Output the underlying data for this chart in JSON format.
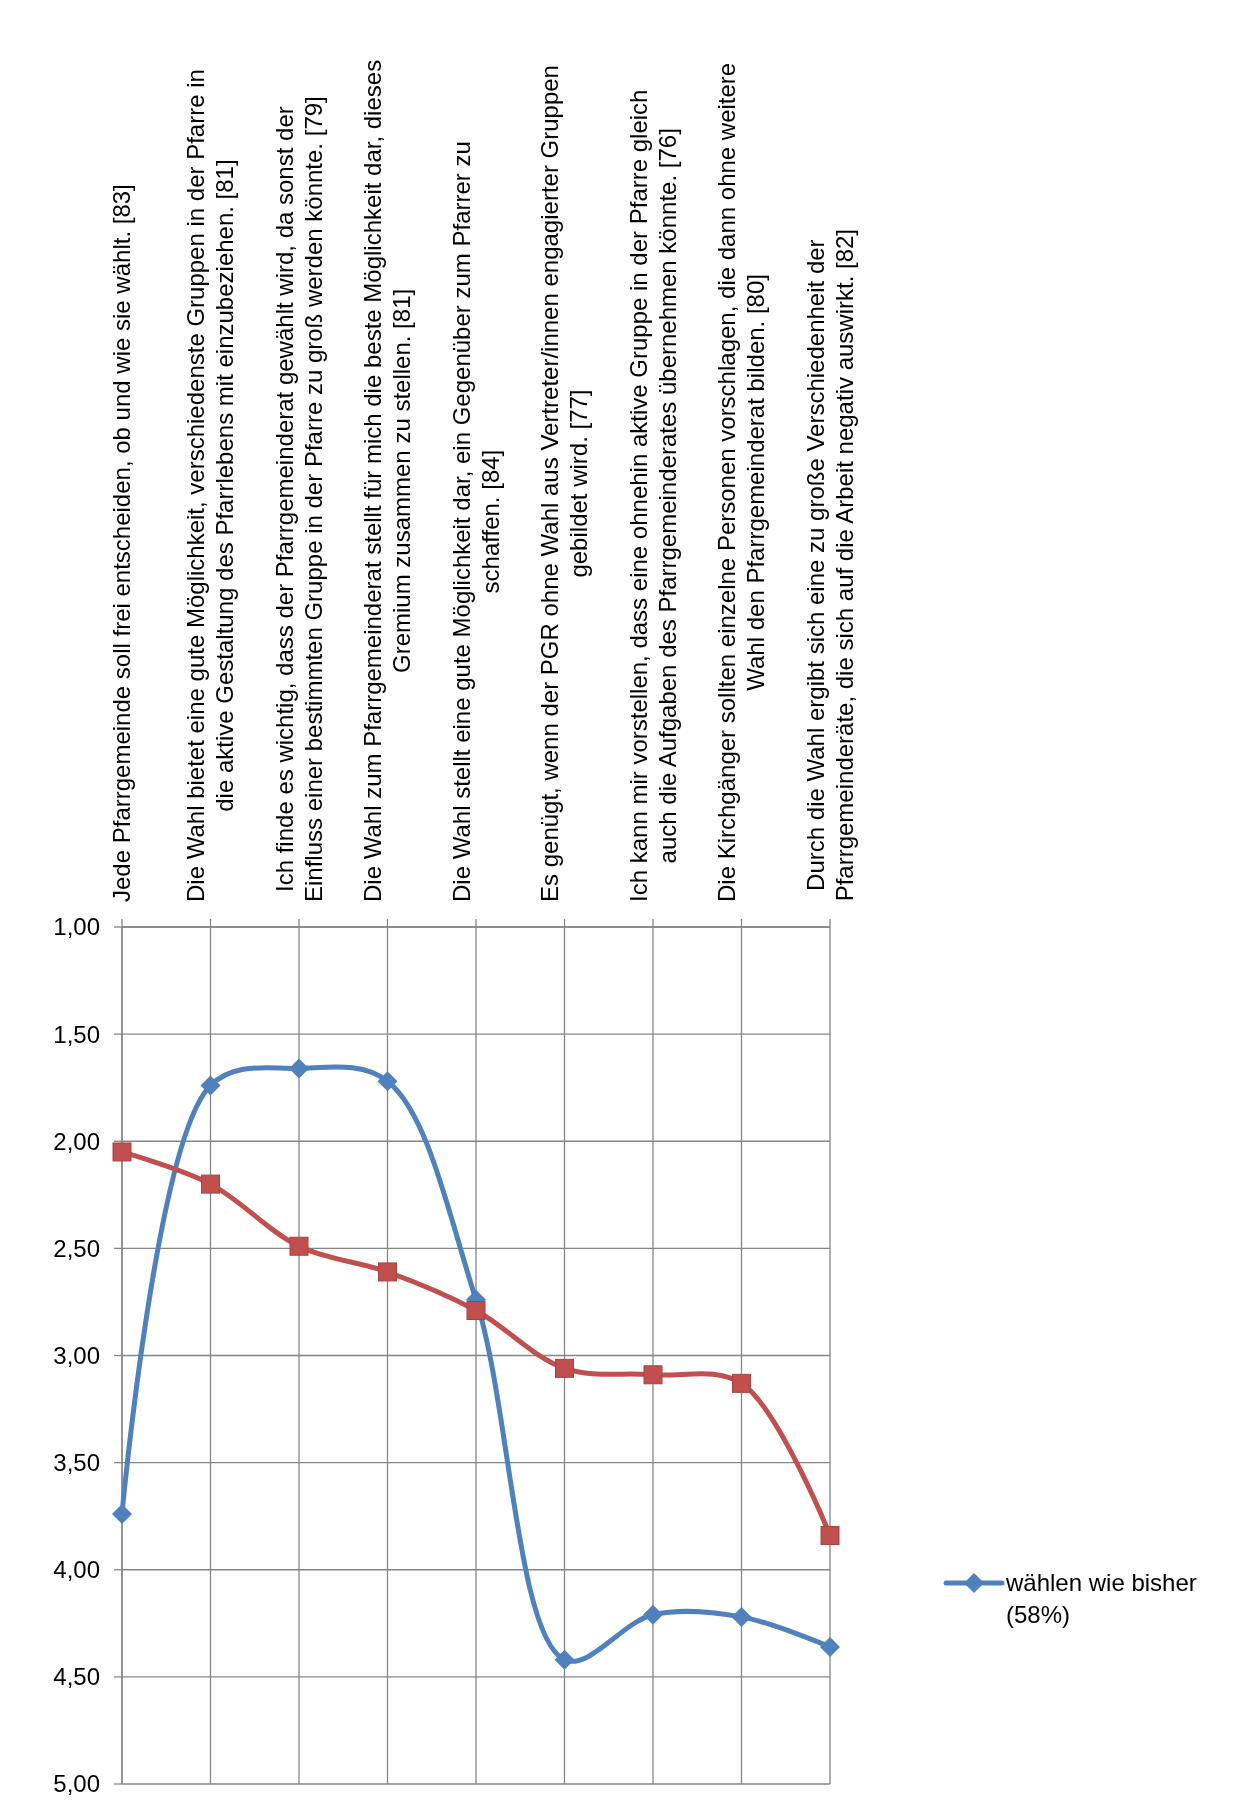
{
  "chart_data": {
    "type": "line",
    "categories": [
      "Jede Pfarrgemeinde soll frei entscheiden, ob und wie sie wählt. [83]",
      "Die Wahl bietet eine gute Möglichkeit, verschiedenste Gruppen in der Pfarre in\ndie aktive Gestaltung des Pfarrlebens mit einzubeziehen. [81]",
      "Ich finde es wichtig, dass der Pfarrgemeinderat gewählt wird, da sonst der\nEinfluss einer bestimmten Gruppe in der Pfarre zu groß werden könnte. [79]",
      "Die Wahl zum Pfarrgemeinderat stellt für mich die beste Möglichkeit dar, dieses\nGremium zusammen zu stellen. [81]",
      "Die Wahl stellt eine gute Möglichkeit dar, ein Gegenüber zum Pfarrer zu\nschaffen. [84]",
      "Es genügt, wenn der PGR ohne Wahl aus Vertreter/innen engagierter Gruppen\ngebildet wird. [77]",
      "Ich kann mir vorstellen, dass eine ohnehin aktive Gruppe in der Pfarre gleich\nauch die Aufgaben des Pfarrgemeinderates übernehmen könnte. [76]",
      "Die Kirchgänger sollten einzelne Personen vorschlagen, die dann ohne weitere\nWahl den Pfarrgemeinderat bilden. [80]",
      "Durch die Wahl ergibt sich eine zu große Verschiedenheit der\nPfarrgemeinderäte, die sich auf die Arbeit negativ auswirkt. [82]"
    ],
    "series": [
      {
        "name": "wählen wie bisher (58%)",
        "color": "#4f81bd",
        "marker": "diamond",
        "values": [
          3.74,
          1.74,
          1.66,
          1.72,
          2.74,
          4.42,
          4.21,
          4.22,
          4.36
        ]
      },
      {
        "color": "#c0504d",
        "marker": "square",
        "values": [
          2.05,
          2.2,
          2.49,
          2.61,
          2.79,
          3.06,
          3.09,
          3.13,
          3.84
        ]
      }
    ],
    "ylim": [
      5,
      1
    ],
    "yticks": [
      {
        "value": 1,
        "label": "1,00"
      },
      {
        "value": 1.5,
        "label": "1,50"
      },
      {
        "value": 2,
        "label": "2,00"
      },
      {
        "value": 2.5,
        "label": "2,50"
      },
      {
        "value": 3,
        "label": "3,00"
      },
      {
        "value": 3.5,
        "label": "3,50"
      },
      {
        "value": 4,
        "label": "4,00"
      },
      {
        "value": 4.5,
        "label": "4,50"
      },
      {
        "value": 5,
        "label": "5,00"
      }
    ],
    "grid": true,
    "legend": "right"
  }
}
